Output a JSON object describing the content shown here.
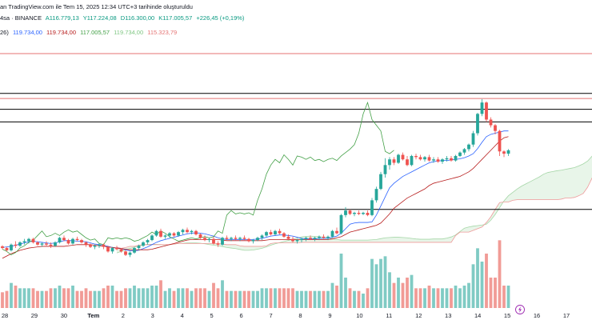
{
  "header": {
    "line1": "an TradingView.com ile Tem 15, 2025 12:34 UTC+3 tarihinde oluşturuldu",
    "symbol": "4sa · BINANCE",
    "open": "A116.779,13",
    "high": "Y117.224,08",
    "low": "D116.300,00",
    "close": "K117.005,57",
    "change": "+226,45 (+0,19%)",
    "ind_label": "26)",
    "ind_v1": "119.734,00",
    "ind_v2": "119.734,00",
    "ind_v3": "117.005,57",
    "ind_v4": "119.734,00",
    "ind_v5": "115.323,79"
  },
  "colors": {
    "up": "#26a69a",
    "down": "#ef5350",
    "tenkan": "#2962ff",
    "kijun": "#b71c1c",
    "chikou": "#43a047",
    "span_a": "#a5d6a7",
    "span_b": "#ef9a9a",
    "res_line": "#e57373",
    "hline": "#000000",
    "vol_up": "#80cbc4",
    "vol_down": "#f19b96"
  },
  "chart_data": {
    "type": "candlestick",
    "title": "",
    "xlabel": "",
    "ylabel": "",
    "x_tick_labels": [
      "28",
      "29",
      "30",
      "Tem",
      "2",
      "3",
      "4",
      "5",
      "6",
      "7",
      "8",
      "9",
      "10",
      "11",
      "12",
      "13",
      "14",
      "15",
      "16",
      "17"
    ],
    "ylim": [
      106000,
      125000
    ],
    "horizontal_levels": [
      123800,
      120300,
      119850,
      118900,
      117800,
      110100
    ],
    "ohlc": [
      [
        106850,
        106950,
        106600,
        106700
      ],
      [
        106700,
        106800,
        106400,
        106500
      ],
      [
        106500,
        107100,
        106400,
        107000
      ],
      [
        107000,
        107300,
        106700,
        106900
      ],
      [
        106900,
        107300,
        106800,
        107200
      ],
      [
        107200,
        107500,
        107000,
        107300
      ],
      [
        107300,
        107600,
        107100,
        107500
      ],
      [
        107500,
        107600,
        107100,
        107200
      ],
      [
        107200,
        107300,
        106900,
        107000
      ],
      [
        107000,
        107200,
        106800,
        107100
      ],
      [
        107100,
        107300,
        106900,
        107000
      ],
      [
        107000,
        107200,
        106700,
        106900
      ],
      [
        106900,
        107300,
        106800,
        107200
      ],
      [
        107200,
        107700,
        107100,
        107600
      ],
      [
        107600,
        107800,
        107300,
        107400
      ],
      [
        107400,
        107500,
        107000,
        107100
      ],
      [
        107100,
        107600,
        107000,
        107500
      ],
      [
        107500,
        107700,
        107300,
        107400
      ],
      [
        107400,
        107500,
        107100,
        107200
      ],
      [
        107200,
        107300,
        106800,
        107000
      ],
      [
        107000,
        107100,
        106700,
        106800
      ],
      [
        106800,
        107000,
        106600,
        106900
      ],
      [
        106900,
        107100,
        106700,
        107000
      ],
      [
        107000,
        107100,
        106600,
        106800
      ],
      [
        106800,
        106900,
        106300,
        106400
      ],
      [
        106400,
        106800,
        106200,
        106700
      ],
      [
        106700,
        106900,
        106500,
        106600
      ],
      [
        106600,
        106700,
        106300,
        106400
      ],
      [
        106400,
        106500,
        106000,
        106100
      ],
      [
        106100,
        106400,
        105900,
        106300
      ],
      [
        106300,
        106800,
        106200,
        106700
      ],
      [
        106700,
        107000,
        106500,
        106900
      ],
      [
        106900,
        107300,
        106800,
        107200
      ],
      [
        107200,
        107500,
        107000,
        107400
      ],
      [
        107400,
        107900,
        107300,
        107800
      ],
      [
        107800,
        108300,
        107700,
        108200
      ],
      [
        108200,
        108400,
        107600,
        107700
      ],
      [
        107700,
        107900,
        107500,
        107800
      ],
      [
        107800,
        108100,
        107600,
        108000
      ],
      [
        108000,
        108100,
        107700,
        107800
      ],
      [
        107800,
        108200,
        107700,
        108100
      ],
      [
        108100,
        108400,
        107900,
        108300
      ],
      [
        108300,
        108500,
        108000,
        108100
      ],
      [
        108100,
        108300,
        107900,
        108200
      ],
      [
        108200,
        108300,
        107800,
        107900
      ],
      [
        107900,
        108000,
        107500,
        107600
      ],
      [
        107600,
        107800,
        107300,
        107400
      ],
      [
        107400,
        107600,
        107200,
        107500
      ],
      [
        107500,
        107700,
        107000,
        107100
      ],
      [
        107100,
        107300,
        106800,
        107000
      ],
      [
        107000,
        107700,
        106900,
        107600
      ],
      [
        107600,
        107800,
        107400,
        107500
      ],
      [
        107500,
        107700,
        107300,
        107600
      ],
      [
        107600,
        107800,
        107400,
        107500
      ],
      [
        107500,
        107700,
        107300,
        107600
      ],
      [
        107600,
        107800,
        107400,
        107500
      ],
      [
        107500,
        107600,
        107200,
        107300
      ],
      [
        107300,
        107500,
        107100,
        107400
      ],
      [
        107400,
        107700,
        107300,
        107600
      ],
      [
        107600,
        107900,
        107400,
        107800
      ],
      [
        107800,
        108200,
        107700,
        108100
      ],
      [
        108100,
        108300,
        107800,
        107900
      ],
      [
        107900,
        108300,
        107800,
        108200
      ],
      [
        108200,
        108400,
        107900,
        108000
      ],
      [
        108000,
        108100,
        107600,
        107700
      ],
      [
        107700,
        107900,
        107400,
        107500
      ],
      [
        107500,
        107700,
        107200,
        107300
      ],
      [
        107300,
        107500,
        107100,
        107400
      ],
      [
        107400,
        107600,
        107200,
        107500
      ],
      [
        107500,
        107700,
        107300,
        107600
      ],
      [
        107600,
        107800,
        107400,
        107500
      ],
      [
        107500,
        107700,
        107300,
        107600
      ],
      [
        107600,
        107800,
        107400,
        107700
      ],
      [
        107700,
        107900,
        107500,
        107600
      ],
      [
        107600,
        107800,
        107400,
        107700
      ],
      [
        107700,
        108300,
        107600,
        108200
      ],
      [
        108200,
        108500,
        107900,
        108000
      ],
      [
        108000,
        109700,
        107900,
        109600
      ],
      [
        109600,
        110300,
        109400,
        110000
      ],
      [
        110000,
        110100,
        109600,
        109700
      ],
      [
        109700,
        109900,
        109500,
        109800
      ],
      [
        109800,
        110000,
        109600,
        109700
      ],
      [
        109700,
        109900,
        109600,
        109800
      ],
      [
        109800,
        110000,
        109500,
        109600
      ],
      [
        109600,
        111100,
        109500,
        110900
      ],
      [
        110900,
        112100,
        110700,
        111900
      ],
      [
        111900,
        113400,
        111800,
        113200
      ],
      [
        113200,
        114600,
        112900,
        114000
      ],
      [
        114000,
        114700,
        113600,
        114500
      ],
      [
        114500,
        114700,
        114000,
        114200
      ],
      [
        114200,
        115000,
        114100,
        114900
      ],
      [
        114900,
        115100,
        114400,
        114500
      ],
      [
        114500,
        114800,
        113900,
        114000
      ],
      [
        114000,
        114900,
        113900,
        114800
      ],
      [
        114800,
        115000,
        114500,
        114700
      ],
      [
        114700,
        114900,
        114400,
        114500
      ],
      [
        114500,
        114800,
        114300,
        114700
      ],
      [
        114700,
        114900,
        114300,
        114400
      ],
      [
        114400,
        114700,
        114200,
        114500
      ],
      [
        114500,
        114700,
        114200,
        114300
      ],
      [
        114300,
        114600,
        114100,
        114500
      ],
      [
        114500,
        114800,
        114300,
        114600
      ],
      [
        114600,
        114800,
        114300,
        114400
      ],
      [
        114400,
        114900,
        114300,
        114800
      ],
      [
        114800,
        115200,
        114700,
        115100
      ],
      [
        115100,
        115500,
        114900,
        115400
      ],
      [
        115400,
        115900,
        115200,
        115800
      ],
      [
        115800,
        117000,
        115600,
        116800
      ],
      [
        116800,
        118600,
        116600,
        118500
      ],
      [
        118500,
        119800,
        118300,
        119500
      ],
      [
        119500,
        119600,
        117800,
        118000
      ],
      [
        118000,
        118200,
        117300,
        117500
      ],
      [
        117500,
        117600,
        116700,
        117000
      ],
      [
        117000,
        117100,
        114800,
        115200
      ],
      [
        115200,
        115300,
        114700,
        115000
      ],
      [
        115000,
        115400,
        114800,
        115300
      ]
    ],
    "tenkan": [
      106750,
      106800,
      106850,
      106950,
      107050,
      107150,
      107250,
      107300,
      107250,
      107200,
      107150,
      107100,
      107150,
      107250,
      107350,
      107350,
      107350,
      107300,
      107300,
      107250,
      107150,
      107050,
      107000,
      106950,
      106850,
      106750,
      106700,
      106650,
      106550,
      106450,
      106450,
      106500,
      106650,
      106800,
      107000,
      107200,
      107350,
      107450,
      107550,
      107650,
      107750,
      107850,
      107950,
      108000,
      108050,
      108000,
      107950,
      107850,
      107750,
      107600,
      107500,
      107450,
      107450,
      107450,
      107450,
      107450,
      107450,
      107450,
      107500,
      107550,
      107650,
      107750,
      107800,
      107850,
      107850,
      107800,
      107750,
      107650,
      107550,
      107500,
      107500,
      107500,
      107550,
      107550,
      107550,
      107650,
      107750,
      108000,
      108400,
      108800,
      108900,
      108950,
      108950,
      108950,
      109000,
      109600,
      110400,
      111200,
      112000,
      112400,
      112700,
      113000,
      113200,
      113400,
      113600,
      113800,
      114000,
      114200,
      114300,
      114350,
      114400,
      114400,
      114450,
      114500,
      114550,
      114650,
      114800,
      115000,
      115450,
      116000,
      116500,
      116700,
      116800,
      116900,
      117000,
      117000
    ],
    "kijun": [
      105800,
      106000,
      106200,
      106350,
      106500,
      106600,
      106700,
      106750,
      106800,
      106850,
      106850,
      106850,
      106850,
      106850,
      106850,
      106900,
      106950,
      107000,
      107000,
      107000,
      107000,
      106950,
      106900,
      106850,
      106800,
      106750,
      106700,
      106650,
      106600,
      106550,
      106550,
      106550,
      106550,
      106550,
      106600,
      106700,
      106800,
      106900,
      107000,
      107100,
      107200,
      107300,
      107400,
      107450,
      107450,
      107450,
      107450,
      107450,
      107450,
      107450,
      107400,
      107350,
      107350,
      107350,
      107350,
      107350,
      107350,
      107350,
      107350,
      107350,
      107400,
      107450,
      107450,
      107450,
      107450,
      107450,
      107450,
      107450,
      107450,
      107450,
      107450,
      107450,
      107450,
      107450,
      107450,
      107500,
      107600,
      107700,
      107900,
      108100,
      108200,
      108300,
      108400,
      108500,
      108600,
      108700,
      108900,
      109300,
      109700,
      110200,
      110500,
      110800,
      111100,
      111300,
      111500,
      111700,
      111900,
      112200,
      112400,
      112500,
      112600,
      112700,
      112800,
      112900,
      113000,
      113200,
      113400,
      113700,
      114100,
      114500,
      114900,
      115300,
      115700,
      116100,
      116400,
      116500
    ]
  },
  "x_axis": {
    "badge_icon": "lightning-icon"
  }
}
